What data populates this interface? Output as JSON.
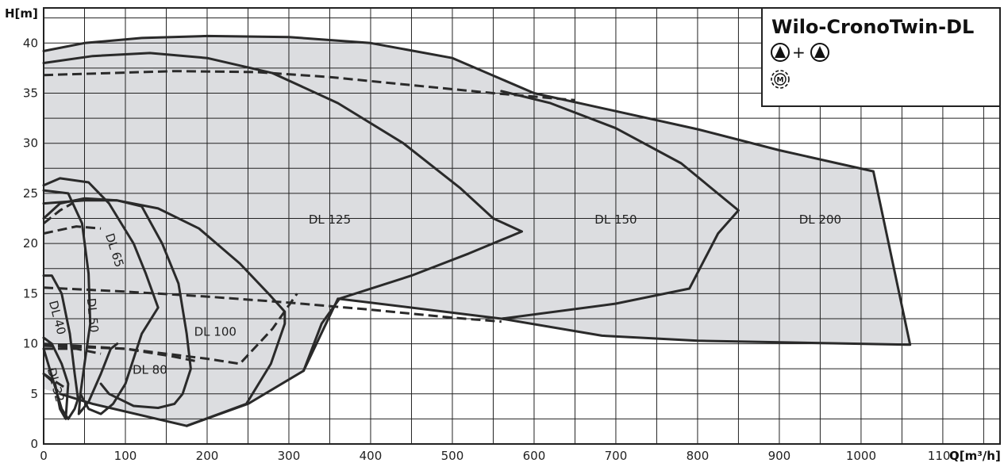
{
  "chart_data": {
    "type": "area",
    "title": "Wilo-CronoTwin-DL",
    "xlabel": "Q[m³/h]",
    "ylabel": "H[m]",
    "xlim": [
      0,
      1170
    ],
    "ylim": [
      0,
      43.5
    ],
    "x_ticks": [
      0,
      100,
      200,
      300,
      400,
      500,
      600,
      700,
      800,
      900,
      1000,
      1100
    ],
    "y_ticks": [
      0,
      5,
      10,
      15,
      20,
      25,
      30,
      35,
      40
    ],
    "grid": true,
    "legend": {
      "position": "top-right",
      "title": "Wilo-CronoTwin-DL",
      "symbols": [
        "pump-plus-pump",
        "motor-symbol"
      ],
      "plus_text": "+",
      "motor_text": "M"
    },
    "colors": {
      "region_fill": "#dcdde0",
      "line": "#2a2a2a",
      "grid": "#222222"
    },
    "envelope": [
      [
        0,
        39.2
      ],
      [
        50,
        40
      ],
      [
        120,
        40.5
      ],
      [
        200,
        40.7
      ],
      [
        300,
        40.6
      ],
      [
        400,
        40
      ],
      [
        500,
        38.5
      ],
      [
        600,
        35
      ],
      [
        700,
        33.2
      ],
      [
        800,
        31.4
      ],
      [
        900,
        29.3
      ],
      [
        1015,
        27.2
      ],
      [
        1060,
        9.9
      ],
      [
        800,
        10.3
      ],
      [
        683,
        10.8
      ],
      [
        560,
        12.5
      ],
      [
        360,
        14.5
      ],
      [
        318,
        7.3
      ],
      [
        250,
        4
      ],
      [
        175,
        1.8
      ],
      [
        60,
        4
      ],
      [
        20,
        5
      ],
      [
        0,
        5.5
      ]
    ],
    "regions": [
      {
        "label": "DL 32",
        "label_at": [
          10,
          5.8
        ],
        "label_rotate": 75,
        "label_size": 12,
        "boundary": [
          [
            0,
            10.6
          ],
          [
            10,
            10
          ],
          [
            22,
            8
          ],
          [
            30,
            6
          ],
          [
            27,
            2.5
          ],
          [
            20,
            3.5
          ],
          [
            14,
            6
          ],
          [
            0,
            7
          ]
        ],
        "dashed": [
          [
            0,
            7
          ],
          [
            15,
            6.2
          ],
          [
            30,
            5.4
          ]
        ]
      },
      {
        "label": "DL 40",
        "label_at": [
          12,
          12.5
        ],
        "label_rotate": 75,
        "boundary": [
          [
            0,
            16.8
          ],
          [
            10,
            16.8
          ],
          [
            22,
            15
          ],
          [
            32,
            11
          ],
          [
            38,
            7
          ],
          [
            42,
            4.5
          ],
          [
            38,
            3.5
          ],
          [
            30,
            2.5
          ],
          [
            22,
            3.5
          ],
          [
            0,
            9.5
          ]
        ],
        "dashed": [
          [
            0,
            9.5
          ],
          [
            40,
            9.5
          ],
          [
            70,
            9
          ]
        ]
      },
      {
        "label": "DL 50",
        "label_at": [
          55,
          12.8
        ],
        "label_rotate": 85,
        "boundary": [
          [
            0,
            25.3
          ],
          [
            30,
            25
          ],
          [
            47,
            22
          ],
          [
            55,
            17
          ],
          [
            57,
            12
          ],
          [
            50,
            8
          ],
          [
            45,
            5
          ],
          [
            43,
            3
          ],
          [
            55,
            4.2
          ],
          [
            70,
            7
          ],
          [
            82,
            9.5
          ],
          [
            90,
            10
          ]
        ],
        "dashed": [
          [
            0,
            22
          ],
          [
            20,
            23.3
          ],
          [
            35,
            24
          ]
        ]
      },
      {
        "label": "DL 65",
        "label_at": [
          82,
          19.2
        ],
        "label_rotate": 72,
        "boundary": [
          [
            0,
            25.8
          ],
          [
            20,
            26.5
          ],
          [
            55,
            26.1
          ],
          [
            80,
            24
          ],
          [
            110,
            20
          ],
          [
            125,
            17
          ],
          [
            140,
            13.6
          ],
          [
            120,
            11
          ],
          [
            100,
            6
          ],
          [
            85,
            4
          ],
          [
            70,
            3
          ],
          [
            55,
            3.5
          ],
          [
            45,
            5
          ]
        ],
        "dashed": [
          [
            0,
            21
          ],
          [
            40,
            21.7
          ],
          [
            70,
            21.5
          ]
        ]
      },
      {
        "label": "DL 80",
        "label_at": [
          130,
          7
        ],
        "label_rotate": 0,
        "boundary": [
          [
            0,
            22.5
          ],
          [
            20,
            24
          ],
          [
            50,
            24.5
          ],
          [
            90,
            24.3
          ],
          [
            120,
            23.7
          ],
          [
            145,
            20
          ],
          [
            165,
            16
          ],
          [
            175,
            11
          ],
          [
            180,
            7.5
          ],
          [
            170,
            5
          ],
          [
            160,
            4
          ],
          [
            140,
            3.6
          ],
          [
            110,
            3.8
          ],
          [
            80,
            5
          ],
          [
            70,
            6
          ]
        ],
        "dashed": [
          [
            0,
            9.8
          ],
          [
            100,
            9.5
          ],
          [
            160,
            8.7
          ],
          [
            190,
            8.2
          ]
        ]
      },
      {
        "label": "DL 100",
        "label_at": [
          210,
          10.8
        ],
        "label_rotate": 0,
        "boundary": [
          [
            0,
            24
          ],
          [
            50,
            24.3
          ],
          [
            90,
            24.3
          ],
          [
            140,
            23.5
          ],
          [
            190,
            21.5
          ],
          [
            240,
            18
          ],
          [
            275,
            15
          ],
          [
            295,
            13.2
          ],
          [
            295,
            12
          ],
          [
            278,
            8
          ],
          [
            248,
            4
          ],
          [
            175,
            1.8
          ]
        ],
        "dashed": [
          [
            0,
            10
          ],
          [
            100,
            9.5
          ],
          [
            200,
            8.5
          ],
          [
            240,
            8
          ],
          [
            280,
            11.5
          ],
          [
            310,
            15
          ]
        ]
      },
      {
        "label": "DL 125",
        "label_at": [
          350,
          22
        ],
        "label_rotate": 0,
        "boundary": [
          [
            0,
            38
          ],
          [
            60,
            38.7
          ],
          [
            130,
            39
          ],
          [
            200,
            38.5
          ],
          [
            280,
            37
          ],
          [
            360,
            34
          ],
          [
            440,
            30
          ],
          [
            510,
            25.5
          ],
          [
            550,
            22.5
          ],
          [
            585,
            21.2
          ],
          [
            520,
            19
          ],
          [
            450,
            16.8
          ],
          [
            362,
            14.5
          ],
          [
            340,
            12
          ],
          [
            318,
            7.3
          ]
        ],
        "dashed": [
          [
            0,
            36.8
          ],
          [
            80,
            37
          ],
          [
            160,
            37.2
          ],
          [
            260,
            37.1
          ],
          [
            350,
            36.6
          ],
          [
            450,
            35.8
          ],
          [
            550,
            35
          ],
          [
            650,
            34.3
          ]
        ]
      },
      {
        "label": "DL 150",
        "label_at": [
          700,
          22
        ],
        "label_rotate": 0,
        "boundary": [
          [
            560,
            35.2
          ],
          [
            620,
            34
          ],
          [
            700,
            31.5
          ],
          [
            780,
            28
          ],
          [
            850,
            23.3
          ],
          [
            825,
            21
          ],
          [
            790,
            15.5
          ],
          [
            700,
            14
          ],
          [
            560,
            12.5
          ]
        ],
        "dashed": [
          [
            0,
            15.6
          ],
          [
            100,
            15.2
          ],
          [
            200,
            14.7
          ],
          [
            300,
            14.1
          ],
          [
            400,
            13.4
          ],
          [
            500,
            12.6
          ],
          [
            560,
            12.2
          ]
        ]
      },
      {
        "label": "DL 200",
        "label_at": [
          950,
          22
        ],
        "label_rotate": 0,
        "boundary": [],
        "dashed": []
      }
    ]
  }
}
